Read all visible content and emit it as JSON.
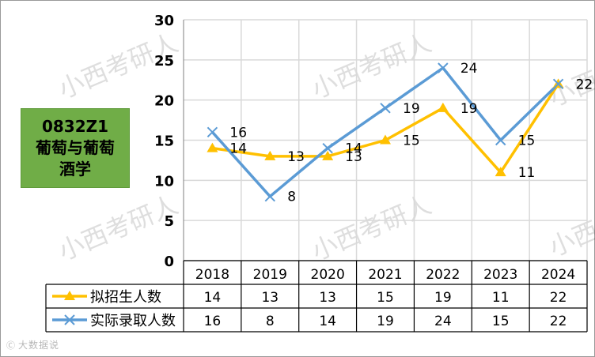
{
  "program_label": {
    "code": "0832Z1",
    "name_line1": "葡萄与葡萄",
    "name_line2": "酒学"
  },
  "watermark": "小西考研人",
  "brand": {
    "logo": "Ⓒ",
    "text": "大数据说"
  },
  "colors": {
    "planned": "#ffc000",
    "actual": "#5b9bd5",
    "label_bg": "#70ad47",
    "grid": "#d9d9d9"
  },
  "chart_data": {
    "type": "line",
    "categories": [
      "2018",
      "2019",
      "2020",
      "2021",
      "2022",
      "2023",
      "2024"
    ],
    "ylim": [
      0,
      30
    ],
    "yticks": [
      0,
      5,
      10,
      15,
      20,
      25,
      30
    ],
    "grid": true,
    "series": [
      {
        "name": "拟招生人数",
        "marker": "triangle",
        "color": "#ffc000",
        "values": [
          14,
          13,
          13,
          15,
          19,
          11,
          22
        ]
      },
      {
        "name": "实际录取人数",
        "marker": "x",
        "color": "#5b9bd5",
        "values": [
          16,
          8,
          14,
          19,
          24,
          15,
          22
        ]
      }
    ],
    "data_table": true
  }
}
